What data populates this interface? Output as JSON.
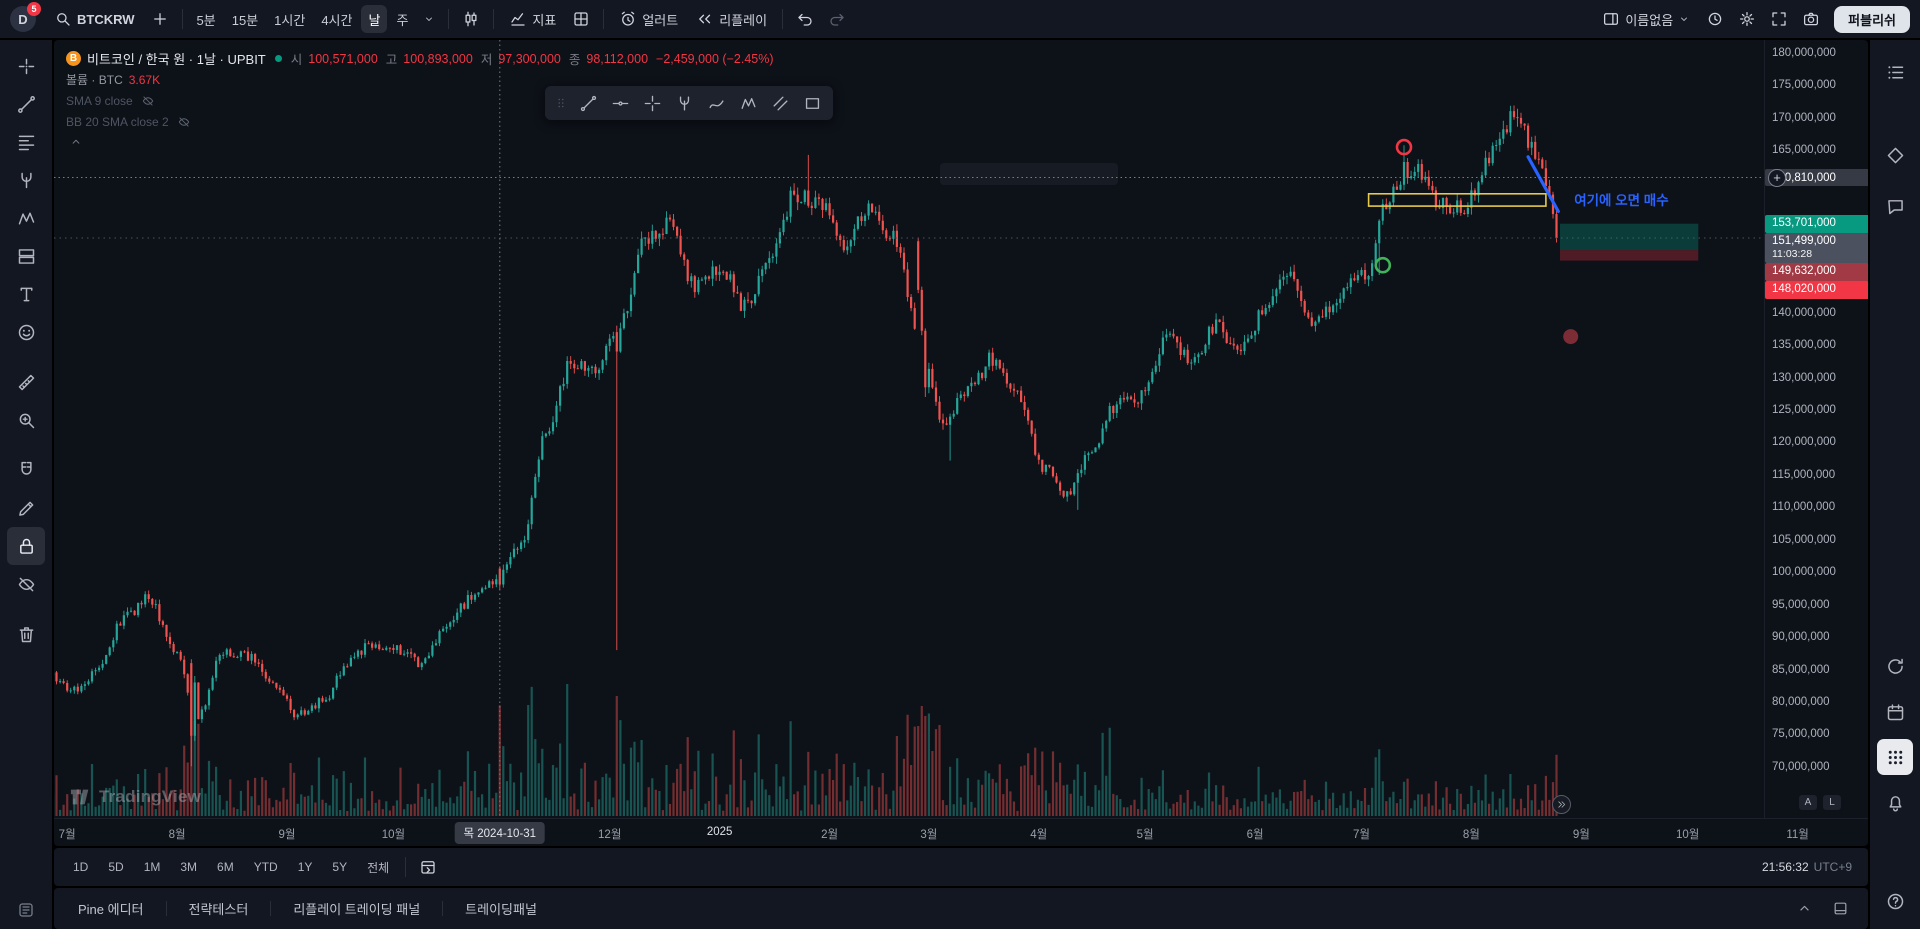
{
  "topbar": {
    "avatar_letter": "D",
    "badge_count": "5",
    "symbol": "BTCKRW",
    "intervals": [
      "5분",
      "15분",
      "1시간",
      "4시간",
      "날",
      "주"
    ],
    "active_interval": "날",
    "indicators_label": "지표",
    "alert_label": "얼러트",
    "replay_label": "리플레이",
    "layout_name": "이름없음",
    "publish_label": "퍼블리쉬"
  },
  "legend": {
    "title": "비트코인 / 한국 원 · 1날 · UPBIT",
    "ohlc": {
      "o_label": "시",
      "o": "100,571,000",
      "h_label": "고",
      "h": "100,893,000",
      "l_label": "저",
      "l": "97,300,000",
      "c_label": "종",
      "c": "98,112,000",
      "change": "−2,459,000 (−2.45%)"
    },
    "volume_label": "볼륨 · BTC",
    "volume_value": "3.67K",
    "sma_label": "SMA 9 close",
    "bb_label": "BB 20 SMA close 2"
  },
  "price_scale": {
    "crosshair_price": "160,810,000",
    "auto_label": "A",
    "log_label": "L",
    "tags": [
      {
        "text": "153,701,000",
        "v": 153.701,
        "bg": "#089981"
      },
      {
        "text": "151,499,000",
        "sub": "11:03:28",
        "v": 151.499,
        "bg": "#4c5160"
      },
      {
        "text": "149,632,000",
        "v": 149.632,
        "bg": "#a13a45"
      },
      {
        "text": "148,020,000",
        "v": 148.02,
        "bg": "#f23645"
      }
    ]
  },
  "time_axis": {
    "crosshair_date": "목 2024-10-31",
    "crosshair_day": 126,
    "months": [
      {
        "label": "7월",
        "day": 4
      },
      {
        "label": "8월",
        "day": 35
      },
      {
        "label": "9월",
        "day": 66
      },
      {
        "label": "10월",
        "day": 96
      },
      {
        "label": "12월",
        "day": 157
      },
      {
        "label": "2025",
        "day": 188,
        "major": true
      },
      {
        "label": "2월",
        "day": 219
      },
      {
        "label": "3월",
        "day": 247
      },
      {
        "label": "4월",
        "day": 278
      },
      {
        "label": "5월",
        "day": 308
      },
      {
        "label": "6월",
        "day": 339
      },
      {
        "label": "7월",
        "day": 369
      },
      {
        "label": "8월",
        "day": 400
      },
      {
        "label": "9월",
        "day": 431
      },
      {
        "label": "10월",
        "day": 461
      },
      {
        "label": "11월",
        "day": 492
      }
    ]
  },
  "range_bar": {
    "ranges": [
      "1D",
      "5D",
      "1M",
      "3M",
      "6M",
      "YTD",
      "1Y",
      "5Y",
      "전체"
    ],
    "clock": "21:56:32",
    "tz": "UTC+9"
  },
  "bottom_tabs": [
    "Pine 에디터",
    "전략테스터",
    "리플레이 트레이딩 패널",
    "트레이딩패널"
  ],
  "watermark": "TradingView",
  "annotation_text": "여기에 오면 매수",
  "left_rail": {
    "groups": [
      [
        {
          "name": "crosshair",
          "icon": "crosshair"
        },
        {
          "name": "trend-line",
          "icon": "trendline"
        },
        {
          "name": "fib-retracement",
          "icon": "fib"
        },
        {
          "name": "pitchfork",
          "icon": "pitchfork"
        },
        {
          "name": "xabcd-pattern",
          "icon": "pattern"
        },
        {
          "name": "long-short-position",
          "icon": "position"
        },
        {
          "name": "text-tool",
          "icon": "text"
        },
        {
          "name": "emoji",
          "icon": "emoji"
        }
      ],
      [
        {
          "name": "measure",
          "icon": "ruler"
        },
        {
          "name": "zoom-in",
          "icon": "zoom"
        }
      ],
      [
        {
          "name": "magnet-mode",
          "icon": "magnet"
        },
        {
          "name": "drawing-mode",
          "icon": "pencil"
        },
        {
          "name": "lock-drawings",
          "icon": "lock",
          "active": true
        },
        {
          "name": "hide-drawings",
          "icon": "eye-off"
        }
      ],
      [
        {
          "name": "remove-drawings",
          "icon": "trash"
        }
      ]
    ]
  },
  "floating_toolbar": {
    "tools": [
      {
        "name": "trend-line",
        "icon": "trendline"
      },
      {
        "name": "horizontal-line",
        "icon": "hline"
      },
      {
        "name": "cross-line",
        "icon": "cross-line"
      },
      {
        "name": "pitchfork",
        "icon": "pitchfork"
      },
      {
        "name": "brush",
        "icon": "brush"
      },
      {
        "name": "pattern",
        "icon": "pattern"
      },
      {
        "name": "parallel-channel",
        "icon": "channel"
      },
      {
        "name": "rectangle",
        "icon": "rect-tool"
      }
    ]
  },
  "right_rail": {
    "top": [
      {
        "name": "watchlist",
        "icon": "hlist"
      },
      {
        "name": "ideas",
        "icon": "diamond"
      },
      {
        "name": "chat",
        "icon": "chat"
      }
    ],
    "bottom": [
      {
        "name": "refresh",
        "icon": "refresh"
      },
      {
        "name": "calendar",
        "icon": "calendar"
      },
      {
        "name": "apps-grid",
        "icon": "apps",
        "active": true
      },
      {
        "name": "notifications",
        "icon": "bell"
      },
      {
        "name": "help",
        "icon": "help"
      }
    ]
  },
  "chart_data": {
    "type": "candlestick+volume",
    "symbol": "BTC/KRW · UPBIT · 1D",
    "unit": "millions of KRW",
    "start_date": "2024-06-27",
    "days": 425,
    "ylim": [
      66,
      181
    ],
    "y_ticks": [
      180,
      175,
      170,
      165,
      140,
      135,
      130,
      125,
      120,
      115,
      110,
      105,
      100,
      95,
      90,
      85,
      80,
      75,
      70
    ],
    "last_price": 151.499,
    "weekly_closes": [
      84,
      82,
      85,
      93,
      96,
      88,
      78,
      88,
      87,
      83,
      78,
      80,
      86,
      89,
      88,
      86,
      92,
      96,
      99,
      104,
      121,
      132,
      131,
      138,
      151,
      154,
      144,
      147,
      141,
      148,
      158,
      157,
      150,
      156,
      152,
      137,
      123,
      128,
      133,
      127,
      116,
      112,
      119,
      126,
      127,
      136,
      133,
      138,
      134,
      141,
      146,
      138,
      143,
      146,
      158,
      162,
      157,
      156,
      164,
      170,
      164,
      152
    ],
    "specials": [
      {
        "day": 39,
        "o": 86,
        "h": 86.6,
        "l": 70.1,
        "c": 74.8,
        "v": 130
      },
      {
        "day": 40,
        "o": 74.8,
        "h": 84,
        "l": 74,
        "c": 83,
        "v": 95
      },
      {
        "day": 126,
        "o": 100.571,
        "h": 100.893,
        "l": 97.3,
        "c": 98.112
      },
      {
        "day": 159,
        "o": 137,
        "h": 138,
        "l": 88,
        "c": 134,
        "v": 120
      },
      {
        "day": 213,
        "h": 164.3
      },
      {
        "day": 244,
        "o": 151,
        "h": 151.5,
        "l": 143,
        "c": 143.5,
        "v": 90
      },
      {
        "day": 245,
        "o": 143.5,
        "l": 136.5,
        "c": 137.2,
        "v": 110
      },
      {
        "day": 246,
        "o": 137.2,
        "l": 127,
        "c": 128.5,
        "v": 100
      },
      {
        "day": 253,
        "l": 117.2
      },
      {
        "day": 289,
        "l": 109.6
      },
      {
        "day": 374,
        "l": 145.8
      },
      {
        "day": 381,
        "h": 165.8,
        "c": 163.2
      },
      {
        "day": 414,
        "h": 170.8
      },
      {
        "day": 421,
        "c": 159.5
      },
      {
        "day": 422,
        "o": 159.5,
        "c": 158.2
      },
      {
        "day": 423,
        "o": 158.2,
        "c": 155.2,
        "l": 154.5
      },
      {
        "day": 424,
        "o": 155.2,
        "h": 155.7,
        "l": 150.8,
        "c": 151.5
      }
    ],
    "crosshair": {
      "day": 126,
      "price": 160.81
    },
    "drawings": {
      "resistance_box": {
        "day1": 371,
        "day2": 421,
        "p1": 158.3,
        "p2": 156.4,
        "color": "#e7c94c"
      },
      "trend_line": {
        "day1": 416,
        "p1": 164.0,
        "day2": 424.5,
        "p2": 155.6,
        "color": "#2962ff"
      },
      "note": {
        "day": 429,
        "p": 156.6
      },
      "red_ring": {
        "day": 381,
        "p": 165.5,
        "color": "#f23645"
      },
      "green_ring": {
        "day": 375,
        "p": 147.3,
        "color": "#42b35b"
      },
      "profit_zone": {
        "day1": 425,
        "day2": 464,
        "p1": 153.701,
        "p2": 149.632,
        "fill": "rgba(8,153,129,0.32)"
      },
      "stop_zone": {
        "day1": 425,
        "day2": 464,
        "p1": 149.632,
        "p2": 148.02,
        "fill": "rgba(204,47,60,0.35)"
      },
      "dot": {
        "day": 428,
        "p": 136.3,
        "color": "#7b2c35"
      }
    }
  }
}
